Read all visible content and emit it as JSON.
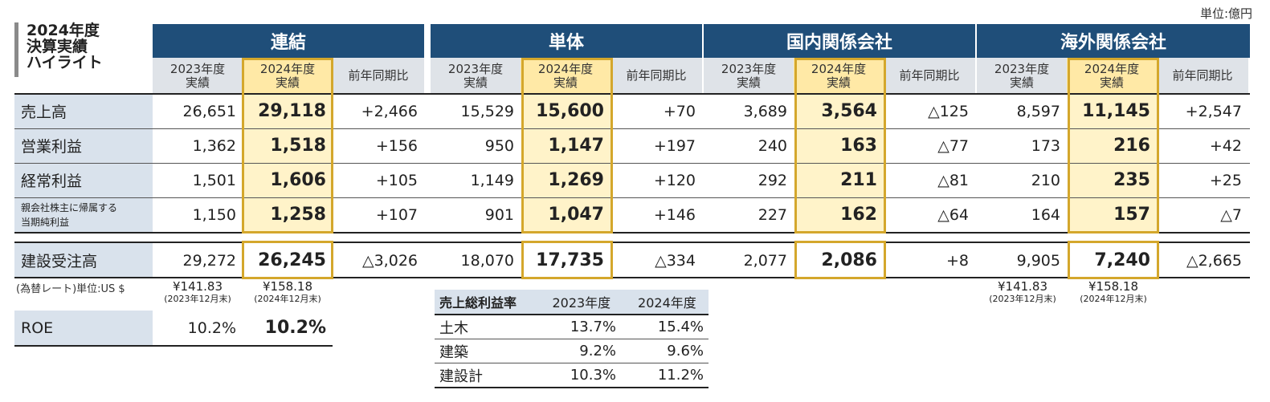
{
  "unit_label": "単位:億円",
  "title": [
    "2024年度",
    "決算実績",
    "ハイライト"
  ],
  "groups": [
    "連結",
    "単体",
    "国内関係会社",
    "海外関係会社"
  ],
  "sub_headers": {
    "prev": [
      "2023年度",
      "実績"
    ],
    "curr": [
      "2024年度",
      "実績"
    ],
    "diff": "前年同期比"
  },
  "rows": [
    {
      "label": "売上高",
      "values": [
        [
          "26,651",
          "29,118",
          "+2,466"
        ],
        [
          "15,529",
          "15,600",
          "+70"
        ],
        [
          "3,689",
          "3,564",
          "△125"
        ],
        [
          "8,597",
          "11,145",
          "+2,547"
        ]
      ]
    },
    {
      "label": "営業利益",
      "values": [
        [
          "1,362",
          "1,518",
          "+156"
        ],
        [
          "950",
          "1,147",
          "+197"
        ],
        [
          "240",
          "163",
          "△77"
        ],
        [
          "173",
          "216",
          "+42"
        ]
      ]
    },
    {
      "label": "経常利益",
      "values": [
        [
          "1,501",
          "1,606",
          "+105"
        ],
        [
          "1,149",
          "1,269",
          "+120"
        ],
        [
          "292",
          "211",
          "△81"
        ],
        [
          "210",
          "235",
          "+25"
        ]
      ]
    },
    {
      "label_lines": [
        "親会社株主に帰属する",
        "当期純利益"
      ],
      "values": [
        [
          "1,150",
          "1,258",
          "+107"
        ],
        [
          "901",
          "1,047",
          "+146"
        ],
        [
          "227",
          "162",
          "△64"
        ],
        [
          "164",
          "157",
          "△7"
        ]
      ]
    }
  ],
  "orders": {
    "label": "建設受注高",
    "values": [
      [
        "29,272",
        "26,245",
        "△3,026"
      ],
      [
        "18,070",
        "17,735",
        "△334"
      ],
      [
        "2,077",
        "2,086",
        "+8"
      ],
      [
        "9,905",
        "7,240",
        "△2,665"
      ]
    ]
  },
  "fx": {
    "label": "(為替レート)単位:US $",
    "prev": "¥141.83",
    "prev_note": "(2023年12月末)",
    "curr": "¥158.18",
    "curr_note": "(2024年12月末)"
  },
  "roe": {
    "label": "ROE",
    "prev": "10.2%",
    "curr": "10.2%"
  },
  "gross_margin": {
    "header": [
      "売上総利益率",
      "2023年度",
      "2024年度"
    ],
    "rows": [
      [
        "土木",
        "13.7%",
        "15.4%"
      ],
      [
        "建築",
        "9.2%",
        "9.6%"
      ],
      [
        "建設計",
        "10.3%",
        "11.2%"
      ]
    ]
  }
}
